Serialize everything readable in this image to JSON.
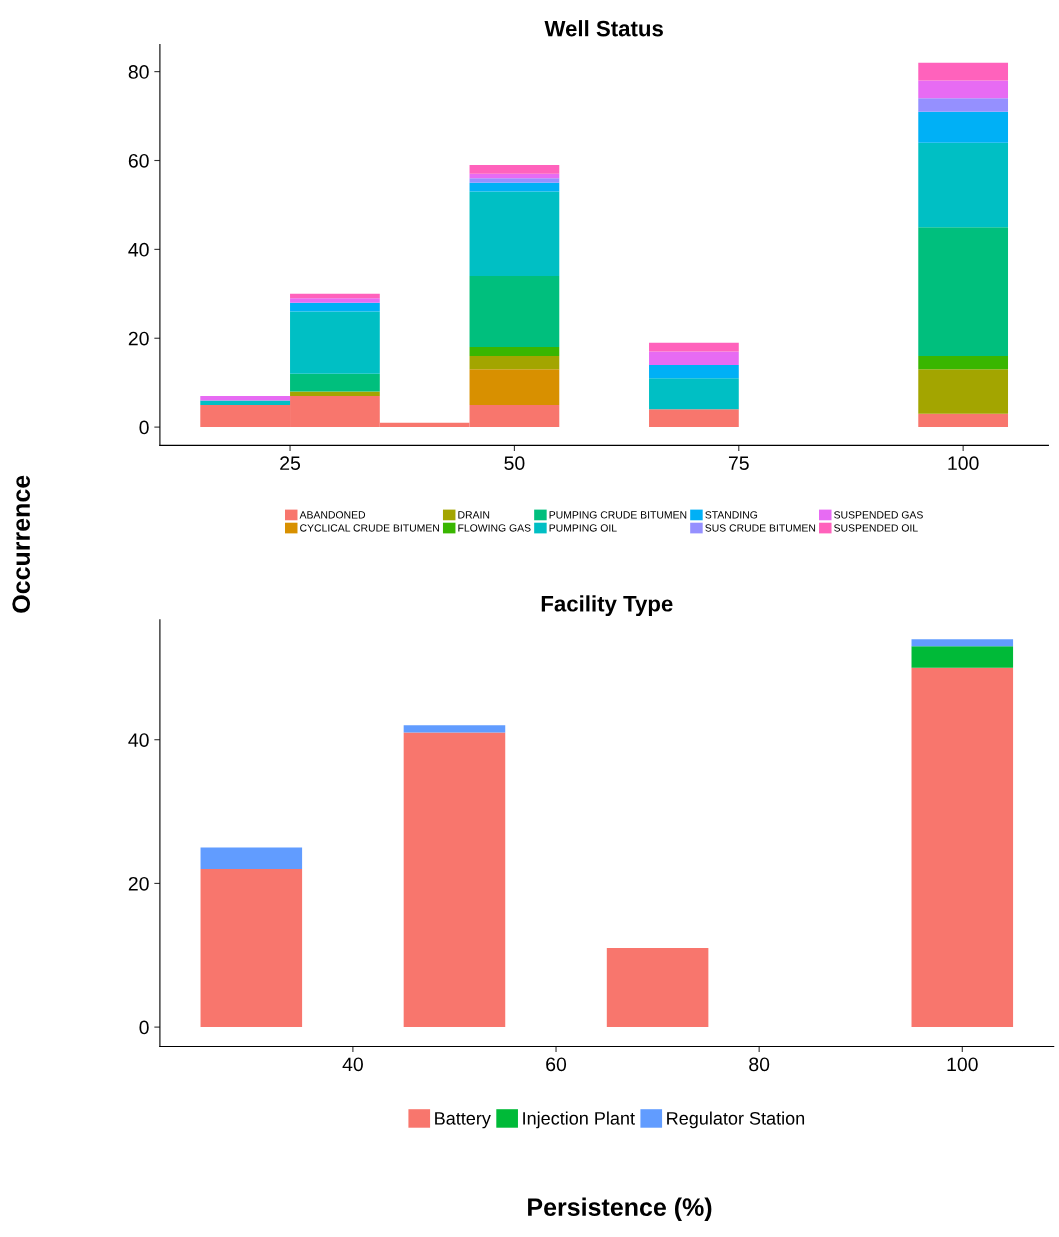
{
  "chart_data": [
    {
      "type": "bar",
      "title": "Well Status",
      "ylabel": "Occurrence",
      "stacked": true,
      "legend": "bottom",
      "x": [
        20,
        30,
        40,
        50,
        70,
        100
      ],
      "xlim": [
        10.5,
        109.5
      ],
      "xticks": [
        25,
        50,
        75,
        100
      ],
      "ylim": [
        -4.1,
        86.1
      ],
      "yticks": [
        0,
        20,
        40,
        60,
        80
      ],
      "series": [
        {
          "name": "ABANDONED",
          "color": "#f8766d",
          "values": [
            5,
            7,
            1,
            5,
            4,
            3
          ]
        },
        {
          "name": "CYCLICAL CRUDE BITUMEN",
          "color": "#d89000",
          "values": [
            0,
            0,
            0,
            8,
            0,
            0
          ]
        },
        {
          "name": "DRAIN",
          "color": "#a3a500",
          "values": [
            0,
            1,
            0,
            3,
            0,
            10
          ]
        },
        {
          "name": "FLOWING GAS",
          "color": "#39b600",
          "values": [
            0,
            0,
            0,
            2,
            0,
            3
          ]
        },
        {
          "name": "PUMPING CRUDE BITUMEN",
          "color": "#00bf7d",
          "values": [
            0,
            4,
            0,
            16,
            0,
            29
          ]
        },
        {
          "name": "PUMPING OIL",
          "color": "#00bfc4",
          "values": [
            1,
            14,
            0,
            19,
            7,
            19
          ]
        },
        {
          "name": "STANDING",
          "color": "#00b0f6",
          "values": [
            0,
            2,
            0,
            2,
            3,
            7
          ]
        },
        {
          "name": "SUS CRUDE BITUMEN",
          "color": "#9590ff",
          "values": [
            0,
            0,
            0,
            1,
            0,
            3
          ]
        },
        {
          "name": "SUSPENDED GAS",
          "color": "#e76bf3",
          "values": [
            1,
            1,
            0,
            1,
            3,
            4
          ]
        },
        {
          "name": "SUSPENDED OIL",
          "color": "#ff62bc",
          "values": [
            0,
            1,
            0,
            2,
            2,
            4
          ]
        }
      ]
    },
    {
      "type": "bar",
      "title": "Facility Type",
      "xlabel": "Persistence (%)",
      "stacked": true,
      "legend": "bottom",
      "x": [
        30,
        40,
        50,
        60,
        70,
        80,
        90,
        100
      ],
      "xlim": [
        21,
        109
      ],
      "xticks": [
        40,
        60,
        80,
        100
      ],
      "ylim": [
        -2.7,
        56.7
      ],
      "yticks": [
        0,
        20,
        40
      ],
      "series": [
        {
          "name": "Battery",
          "color": "#f8766d",
          "values": [
            22,
            0,
            41,
            0,
            11,
            0,
            0,
            50
          ]
        },
        {
          "name": "Injection Plant",
          "color": "#00ba38",
          "values": [
            0,
            0,
            0,
            0,
            0,
            0,
            0,
            3
          ]
        },
        {
          "name": "Regulator Station",
          "color": "#619cff",
          "values": [
            3,
            0,
            1,
            0,
            0,
            0,
            0,
            1
          ]
        }
      ]
    }
  ]
}
